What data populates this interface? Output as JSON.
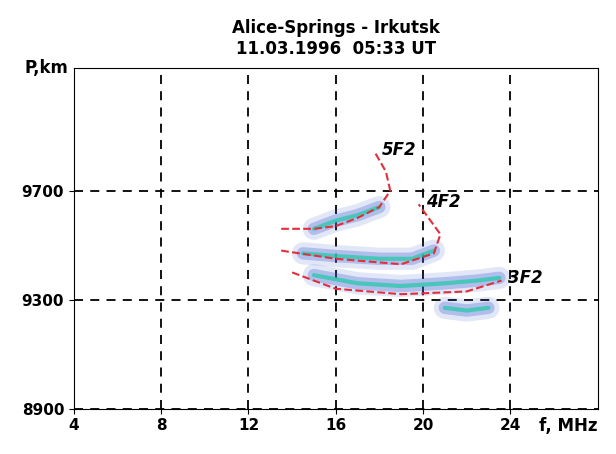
{
  "chart_data": {
    "type": "line",
    "title": "Alice-Springs - Irkutsk\n11.03.1996  05:33 UT",
    "x_label": "f, MHz",
    "y_label": "P,km",
    "xlim": [
      4,
      28
    ],
    "xticks": [
      4,
      8,
      12,
      16,
      20,
      24
    ],
    "ylim": [
      8900,
      10150
    ],
    "yticks": [
      8900,
      9300,
      9700
    ],
    "grid": true,
    "series": [
      {
        "name": "5F2",
        "color": "#e0303a",
        "line_style": "dashed",
        "x": [
          13.5,
          15.0,
          16.0,
          17.0,
          18.0,
          18.5,
          18.3,
          17.8
        ],
        "values": [
          9560,
          9560,
          9570,
          9600,
          9640,
          9700,
          9770,
          9840
        ]
      },
      {
        "name": "4F2",
        "color": "#e0303a",
        "line_style": "dashed",
        "x": [
          13.5,
          16.0,
          19.0,
          20.5,
          20.8,
          19.8
        ],
        "values": [
          9480,
          9450,
          9430,
          9470,
          9540,
          9650
        ]
      },
      {
        "name": "3F2",
        "color": "#e0303a",
        "line_style": "dashed",
        "x": [
          14.0,
          16.0,
          19.0,
          22.0,
          23.6
        ],
        "values": [
          9400,
          9340,
          9320,
          9330,
          9370
        ]
      }
    ],
    "traces": [
      {
        "color": "#4060d0",
        "x": [
          15.0,
          16.0,
          17.0,
          18.0
        ],
        "values": [
          9560,
          9590,
          9610,
          9640
        ]
      },
      {
        "color": "#4060d0",
        "x": [
          14.5,
          16.0,
          18.0,
          19.5,
          20.5
        ],
        "values": [
          9470,
          9460,
          9450,
          9450,
          9480
        ]
      },
      {
        "color": "#4060d0",
        "x": [
          15.0,
          17.0,
          19.0,
          21.0,
          22.5,
          23.5
        ],
        "values": [
          9390,
          9360,
          9350,
          9360,
          9370,
          9380
        ]
      },
      {
        "color": "#4060d0",
        "x": [
          21.0,
          22.0,
          23.0
        ],
        "values": [
          9270,
          9260,
          9270
        ]
      }
    ]
  }
}
